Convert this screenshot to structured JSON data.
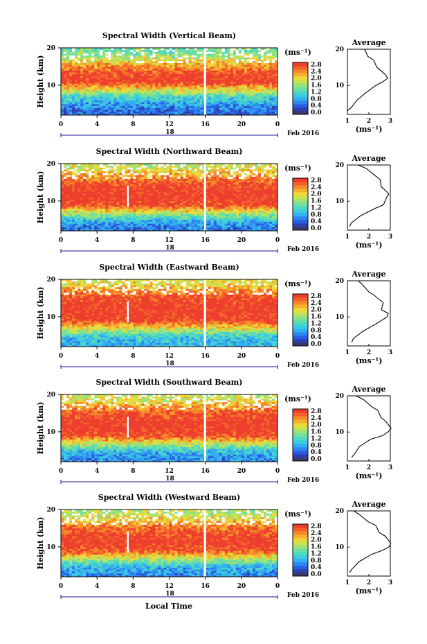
{
  "figure": {
    "bottom_xlabel": "Local Time",
    "date_label": "Feb 2016",
    "day_label": "18"
  },
  "colorbar": {
    "unit": "(ms⁻¹)",
    "ticks": [
      "0.0",
      "0.4",
      "0.8",
      "1.2",
      "1.6",
      "2.0",
      "2.4",
      "2.8"
    ],
    "colors": [
      "#3a3a6a",
      "#2f3fb0",
      "#2a5ee0",
      "#2f86f0",
      "#34aef0",
      "#3ccbe0",
      "#4fd9c0",
      "#6fe0a0",
      "#9ae27a",
      "#c8e250",
      "#f0d838",
      "#f6b030",
      "#f58a2a",
      "#f2622a",
      "#ee3e2e"
    ]
  },
  "profile": {
    "title": "Average",
    "xlabel": "(ms⁻¹)",
    "xticks": [
      "1",
      "2",
      "3"
    ],
    "yticks": [
      "10",
      "20"
    ]
  },
  "panel_common": {
    "ylabel": "Height (km)",
    "yticks": [
      "10",
      "20"
    ],
    "xticks": [
      "0",
      "4",
      "8",
      "12",
      "16",
      "20",
      "0"
    ]
  },
  "chart_data": [
    {
      "type": "heatmap",
      "title": "Spectral Width (Vertical Beam)",
      "xlabel": "Local Time",
      "ylabel": "Height (km)",
      "xlim": [
        0,
        24
      ],
      "ylim": [
        2,
        20
      ],
      "clim": [
        0.0,
        2.8
      ],
      "z_profile": {
        "heights": [
          3,
          5,
          7,
          9,
          11,
          13,
          15,
          17,
          19
        ],
        "values": [
          0.5,
          0.8,
          1.2,
          2.0,
          2.8,
          2.7,
          2.3,
          1.8,
          1.4
        ]
      },
      "average_profile": {
        "x": [
          1.0,
          1.2,
          1.5,
          1.9,
          2.3,
          2.7,
          2.9,
          2.8,
          2.6,
          2.4,
          2.2,
          2.0,
          1.8
        ],
        "y": [
          3,
          4,
          6,
          8,
          10,
          11,
          12,
          13,
          14,
          15,
          17,
          18,
          20
        ]
      }
    },
    {
      "type": "heatmap",
      "title": "Spectral Width (Northward Beam)",
      "xlabel": "Local Time",
      "ylabel": "Height (km)",
      "xlim": [
        0,
        24
      ],
      "ylim": [
        2,
        20
      ],
      "clim": [
        0.0,
        2.8
      ],
      "z_profile": {
        "heights": [
          3,
          5,
          7,
          9,
          11,
          13,
          15,
          17,
          19
        ],
        "values": [
          0.6,
          1.0,
          1.8,
          2.7,
          2.8,
          2.8,
          2.6,
          2.2,
          1.8
        ]
      },
      "average_profile": {
        "x": [
          1.1,
          1.2,
          1.6,
          2.3,
          2.7,
          2.8,
          2.9,
          2.8,
          2.6,
          2.5,
          2.3,
          1.9,
          1.5
        ],
        "y": [
          3,
          4,
          6,
          8,
          9,
          11,
          12,
          13,
          14,
          16,
          17,
          19,
          20
        ]
      }
    },
    {
      "type": "heatmap",
      "title": "Spectral Width (Eastward Beam)",
      "xlabel": "Local Time",
      "ylabel": "Height (km)",
      "xlim": [
        0,
        24
      ],
      "ylim": [
        2,
        20
      ],
      "clim": [
        0.0,
        2.8
      ],
      "z_profile": {
        "heights": [
          3,
          5,
          7,
          9,
          11,
          13,
          15,
          17,
          19
        ],
        "values": [
          0.9,
          1.1,
          1.9,
          2.7,
          2.8,
          2.8,
          2.7,
          2.3,
          1.9
        ]
      },
      "average_profile": {
        "x": [
          1.2,
          1.3,
          1.7,
          2.3,
          2.8,
          2.9,
          2.6,
          2.7,
          2.4,
          2.3,
          2.0,
          1.7,
          1.5
        ],
        "y": [
          3,
          4,
          6,
          8,
          10,
          11,
          12,
          14,
          15,
          16,
          17,
          19,
          20
        ]
      }
    },
    {
      "type": "heatmap",
      "title": "Spectral Width (Southward Beam)",
      "xlabel": "Local Time",
      "ylabel": "Height (km)",
      "xlim": [
        0,
        24
      ],
      "ylim": [
        2,
        20
      ],
      "clim": [
        0.0,
        2.8
      ],
      "z_profile": {
        "heights": [
          3,
          5,
          7,
          9,
          11,
          13,
          15,
          17,
          19
        ],
        "values": [
          0.7,
          1.0,
          1.8,
          2.7,
          2.8,
          2.8,
          2.6,
          2.2,
          1.8
        ]
      },
      "average_profile": {
        "x": [
          1.2,
          1.3,
          1.6,
          2.1,
          2.6,
          2.9,
          3.0,
          2.8,
          2.6,
          2.4,
          2.1,
          1.7,
          1.4
        ],
        "y": [
          3,
          4,
          6,
          8,
          9,
          10,
          11,
          13,
          14,
          16,
          17,
          19,
          20
        ]
      }
    },
    {
      "type": "heatmap",
      "title": "Spectral Width (Westward Beam)",
      "xlabel": "Local Time",
      "ylabel": "Height (km)",
      "xlim": [
        0,
        24
      ],
      "ylim": [
        2,
        20
      ],
      "clim": [
        0.0,
        2.8
      ],
      "z_profile": {
        "heights": [
          3,
          5,
          7,
          9,
          11,
          13,
          15,
          17,
          19
        ],
        "values": [
          0.7,
          1.0,
          1.8,
          2.6,
          2.8,
          2.7,
          2.5,
          2.1,
          1.7
        ]
      },
      "average_profile": {
        "x": [
          1.1,
          1.2,
          1.5,
          2.1,
          2.6,
          2.9,
          3.0,
          2.8,
          2.5,
          2.3,
          2.0,
          1.6,
          1.3
        ],
        "y": [
          3,
          4,
          6,
          8,
          9,
          10,
          11,
          13,
          14,
          16,
          17,
          19,
          20
        ]
      }
    }
  ]
}
